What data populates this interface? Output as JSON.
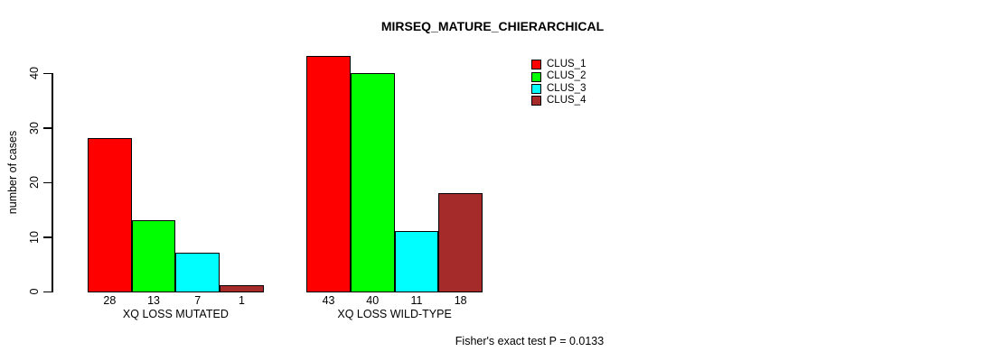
{
  "chart_data": {
    "type": "bar",
    "title": "MIRSEQ_MATURE_CHIERARCHICAL",
    "ylabel": "number of cases",
    "xlabel": "",
    "ylim": [
      0,
      43
    ],
    "yticks": [
      0,
      10,
      20,
      30,
      40
    ],
    "grid": false,
    "legend_position": "top-right",
    "categories": [
      "XQ LOSS MUTATED",
      "XQ LOSS WILD-TYPE"
    ],
    "series": [
      {
        "name": "CLUS_1",
        "color": "#FF0000",
        "values": [
          28,
          43
        ]
      },
      {
        "name": "CLUS_2",
        "color": "#00FF00",
        "values": [
          13,
          40
        ]
      },
      {
        "name": "CLUS_3",
        "color": "#00FFFF",
        "values": [
          7,
          11
        ]
      },
      {
        "name": "CLUS_4",
        "color": "#A52A2A",
        "values": [
          1,
          18
        ]
      }
    ],
    "show_value_labels": true,
    "annotation": "Fisher's exact test P = 0.0133"
  }
}
